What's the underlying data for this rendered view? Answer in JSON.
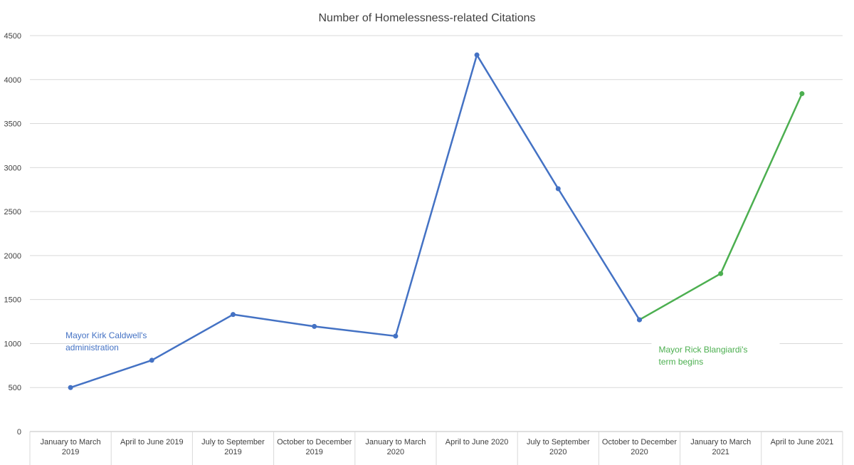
{
  "chart_data": {
    "type": "line",
    "title": "Number of Homelessness-related Citations",
    "xlabel": "",
    "ylabel": "",
    "categories": [
      "January to March 2019",
      "April to June 2019",
      "July to September 2019",
      "October to December 2019",
      "January to March 2020",
      "April to June 2020",
      "July to September 2020",
      "October to December 2020",
      "January  to March 2021",
      "April to June 2021"
    ],
    "series": [
      {
        "name": "",
        "color": "#4472C4",
        "values": [
          500,
          810,
          1330,
          1195,
          1085,
          4280,
          2760,
          1270,
          null,
          null
        ]
      },
      {
        "name": "",
        "color": "#4CAF50",
        "values": [
          null,
          null,
          null,
          null,
          null,
          null,
          null,
          1270,
          1795,
          3840
        ]
      }
    ],
    "ylim": [
      0,
      4500
    ],
    "yticks": [
      0,
      500,
      1000,
      1500,
      2000,
      2500,
      3000,
      3500,
      4000,
      4500
    ],
    "grid": true,
    "legend": "none",
    "annotations": [
      {
        "text": "Mayor Kirk Caldwell's administration",
        "color": "#4472C4",
        "category_index": 0,
        "y_value": 1060
      },
      {
        "text": "Mayor Rick Blangiardi's term begins",
        "color": "#4CAF50",
        "category_index": 7,
        "y_value": 900
      }
    ]
  }
}
